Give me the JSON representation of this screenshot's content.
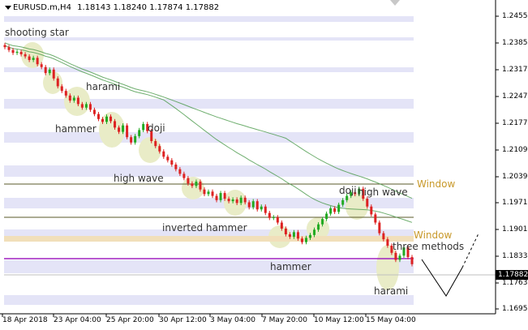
{
  "header": {
    "symbol": "EURUSD.m,H4",
    "ohlc": "1.18143 1.18240 1.17874 1.17882"
  },
  "price_axis": [
    "1.24550",
    "1.23850",
    "1.23170",
    "1.22470",
    "1.21770",
    "1.21090",
    "1.20390",
    "1.19710",
    "1.19010",
    "1.18330",
    "1.17882",
    "1.17630",
    "1.16950"
  ],
  "current_price": "1.17882",
  "time_axis": [
    "18 Apr 2018",
    "23 Apr 04:00",
    "25 Apr 20:00",
    "30 Apr 12:00",
    "3 May 04:00",
    "7 May 20:00",
    "10 May 12:00",
    "15 May 04:00"
  ],
  "annotations": {
    "shooting_star": "shooting star",
    "harami_1": "harami",
    "hammer_1": "hammer",
    "doji_1": "doji",
    "high_wave_1": "high wave",
    "inverted_hammer": "inverted hammer",
    "hammer_2": "hammer",
    "doji_2": "doji",
    "high_wave_2": "high wave",
    "three_methods": "three methods",
    "harami_2": "harami",
    "window_1": "Window",
    "window_2": "Window"
  },
  "colors": {
    "bull": "#22aa22",
    "bear": "#dd2222",
    "band": "#e4e4f7",
    "highlight": "#e9ecc7",
    "ma": "#4a9a4a",
    "window_line": "#5a5a2a",
    "window_zone": "#f1dfba",
    "purple_line": "#a020c0"
  },
  "chart_data": {
    "type": "candlestick",
    "x": [
      "18 Apr 2018",
      "23 Apr 04:00",
      "25 Apr 20:00",
      "30 Apr 12:00",
      "3 May 04:00",
      "7 May 20:00",
      "10 May 12:00",
      "15 May 04:00"
    ],
    "ylim": [
      1.166,
      1.2485
    ],
    "closes": [
      1.2398,
      1.239,
      1.2382,
      1.2385,
      1.2378,
      1.2372,
      1.2362,
      1.2368,
      1.235,
      1.2342,
      1.2325,
      1.2335,
      1.231,
      1.2288,
      1.2275,
      1.2262,
      1.2248,
      1.2256,
      1.2238,
      1.2228,
      1.2238,
      1.2222,
      1.221,
      1.2196,
      1.2188,
      1.2203,
      1.219,
      1.2172,
      1.216,
      1.2178,
      1.2145,
      1.213,
      1.2148,
      1.2165,
      1.2182,
      1.2162,
      1.2134,
      1.212,
      1.2105,
      1.209,
      1.208,
      1.2068,
      1.2055,
      1.2042,
      1.203,
      1.2015,
      1.2008,
      1.202,
      1.1998,
      1.1985,
      1.1992,
      1.198,
      1.1968,
      1.1988,
      1.1972,
      1.1965,
      1.197,
      1.196,
      1.1975,
      1.1962,
      1.1948,
      1.1965,
      1.1942,
      1.195,
      1.1932,
      1.1918,
      1.192,
      1.1905,
      1.1888,
      1.1872,
      1.1865,
      1.1878,
      1.186,
      1.185,
      1.1862,
      1.187,
      1.1885,
      1.19,
      1.1915,
      1.193,
      1.1945,
      1.1935,
      1.1955,
      1.1968,
      1.198,
      1.199,
      1.1985,
      1.2,
      1.1972,
      1.195,
      1.1928,
      1.1905,
      1.1875,
      1.1858,
      1.184,
      1.182,
      1.18,
      1.1812,
      1.1835,
      1.1808,
      1.1788
    ],
    "levels": [
      {
        "label": "Window",
        "price": 1.2025
      },
      {
        "label": "Window",
        "price": 1.189
      },
      {
        "label": "",
        "price": 1.1833
      }
    ]
  }
}
